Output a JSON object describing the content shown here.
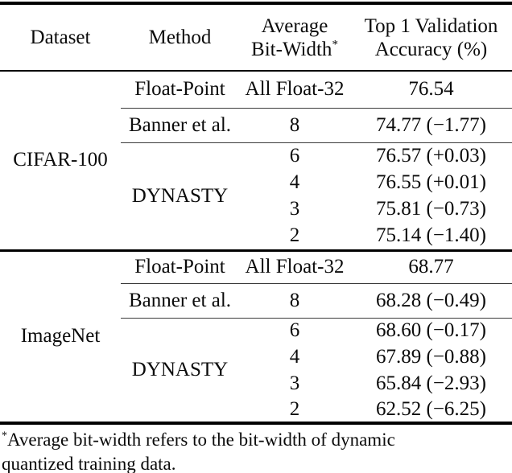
{
  "table": {
    "headers": {
      "col1": "Dataset",
      "col2": "Method",
      "col3_line1": "Average",
      "col3_line2": "Bit-Width",
      "col3_sup": "*",
      "col4_line1": "Top 1 Validation",
      "col4_line2": "Accuracy (%)"
    },
    "sections": [
      {
        "dataset": "CIFAR-100",
        "float_point": {
          "method": "Float-Point",
          "bit_width": "All Float-32",
          "accuracy": "76.54"
        },
        "banner": {
          "method": "Banner et al.",
          "bit_width": "8",
          "accuracy": "74.77 (−1.77)"
        },
        "dynasty": {
          "method": "DYNASTY",
          "rows": [
            {
              "bit_width": "6",
              "accuracy": "76.57 (+0.03)"
            },
            {
              "bit_width": "4",
              "accuracy": "76.55 (+0.01)"
            },
            {
              "bit_width": "3",
              "accuracy": "75.81 (−0.73)"
            },
            {
              "bit_width": "2",
              "accuracy": "75.14 (−1.40)"
            }
          ]
        }
      },
      {
        "dataset": "ImageNet",
        "float_point": {
          "method": "Float-Point",
          "bit_width": "All Float-32",
          "accuracy": "68.77"
        },
        "banner": {
          "method": "Banner et al.",
          "bit_width": "8",
          "accuracy": "68.28 (−0.49)"
        },
        "dynasty": {
          "method": "DYNASTY",
          "rows": [
            {
              "bit_width": "6",
              "accuracy": "68.60 (−0.17)"
            },
            {
              "bit_width": "4",
              "accuracy": "67.89 (−0.88)"
            },
            {
              "bit_width": "3",
              "accuracy": "65.84 (−2.93)"
            },
            {
              "bit_width": "2",
              "accuracy": "62.52 (−6.25)"
            }
          ]
        }
      }
    ],
    "footnote": {
      "sup": "*",
      "text": "Average bit-width refers to the bit-width of dynamic quantized training data."
    }
  }
}
